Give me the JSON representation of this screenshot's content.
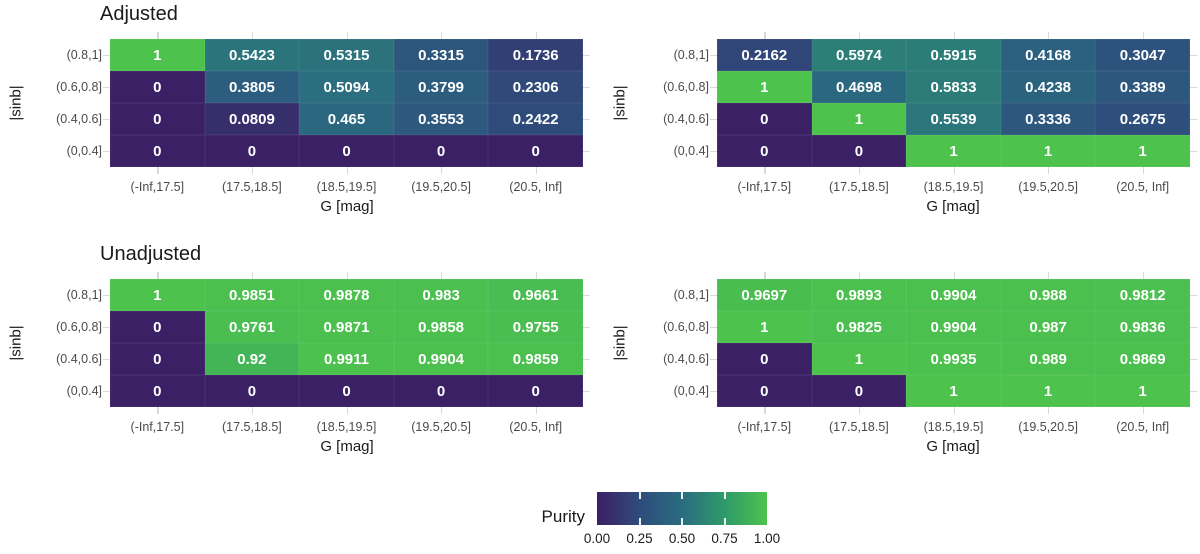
{
  "figure": {
    "background": "#ffffff",
    "x_axis_label": "G [mag]",
    "y_axis_label": "|sinb|",
    "x_categories": [
      "(-Inf,17.5]",
      "(17.5,18.5]",
      "(18.5,19.5]",
      "(19.5,20.5]",
      "(20.5, Inf]"
    ],
    "y_categories": [
      "(0.8,1]",
      "(0.6,0.8]",
      "(0.4,0.6]",
      "(0,0.4]"
    ]
  },
  "legend": {
    "title": "Purity",
    "tick_labels": [
      "0.00",
      "0.25",
      "0.50",
      "0.75",
      "1.00"
    ],
    "range": [
      0,
      1
    ]
  },
  "colorscale": {
    "name": "viridis-like",
    "cell_text_color": "#ffffff",
    "grid_stub_color": "#d9d9d9",
    "stops": [
      {
        "at": 0.0,
        "color": "#3b2065"
      },
      {
        "at": 0.25,
        "color": "#2e4c7b"
      },
      {
        "at": 0.5,
        "color": "#2a6c80"
      },
      {
        "at": 0.75,
        "color": "#2f9a69"
      },
      {
        "at": 1.0,
        "color": "#4dc24d"
      }
    ]
  },
  "chart_data": [
    {
      "type": "heatmap",
      "title": "Adjusted",
      "position": "top-left",
      "xlabel": "G [mag]",
      "ylabel": "|sinb|",
      "value_name": "Purity",
      "x_categories": [
        "(-Inf,17.5]",
        "(17.5,18.5]",
        "(18.5,19.5]",
        "(19.5,20.5]",
        "(20.5, Inf]"
      ],
      "y_categories": [
        "(0.8,1]",
        "(0.6,0.8]",
        "(0.4,0.6]",
        "(0,0.4]"
      ],
      "values_by_row": [
        [
          1,
          0.5423,
          0.5315,
          0.3315,
          0.1736
        ],
        [
          0,
          0.3805,
          0.5094,
          0.3799,
          0.2306
        ],
        [
          0,
          0.0809,
          0.465,
          0.3553,
          0.2422
        ],
        [
          0,
          0,
          0,
          0,
          0
        ]
      ]
    },
    {
      "type": "heatmap",
      "position": "top-right",
      "xlabel": "G [mag]",
      "ylabel": "|sinb|",
      "value_name": "Purity",
      "x_categories": [
        "(-Inf,17.5]",
        "(17.5,18.5]",
        "(18.5,19.5]",
        "(19.5,20.5]",
        "(20.5, Inf]"
      ],
      "y_categories": [
        "(0.8,1]",
        "(0.6,0.8]",
        "(0.4,0.6]",
        "(0,0.4]"
      ],
      "values_by_row": [
        [
          0.2162,
          0.5974,
          0.5915,
          0.4168,
          0.3047
        ],
        [
          1,
          0.4698,
          0.5833,
          0.4238,
          0.3389
        ],
        [
          0,
          1,
          0.5539,
          0.3336,
          0.2675
        ],
        [
          0,
          0,
          1,
          1,
          1
        ]
      ]
    },
    {
      "type": "heatmap",
      "title": "Unadjusted",
      "position": "bottom-left",
      "xlabel": "G [mag]",
      "ylabel": "|sinb|",
      "value_name": "Purity",
      "x_categories": [
        "(-Inf,17.5]",
        "(17.5,18.5]",
        "(18.5,19.5]",
        "(19.5,20.5]",
        "(20.5, Inf]"
      ],
      "y_categories": [
        "(0.8,1]",
        "(0.6,0.8]",
        "(0.4,0.6]",
        "(0,0.4]"
      ],
      "values_by_row": [
        [
          1,
          0.9851,
          0.9878,
          0.983,
          0.9661
        ],
        [
          0,
          0.9761,
          0.9871,
          0.9858,
          0.9755
        ],
        [
          0,
          0.92,
          0.9911,
          0.9904,
          0.9859
        ],
        [
          0,
          0,
          0,
          0,
          0
        ]
      ]
    },
    {
      "type": "heatmap",
      "position": "bottom-right",
      "xlabel": "G [mag]",
      "ylabel": "|sinb|",
      "value_name": "Purity",
      "x_categories": [
        "(-Inf,17.5]",
        "(17.5,18.5]",
        "(18.5,19.5]",
        "(19.5,20.5]",
        "(20.5, Inf]"
      ],
      "y_categories": [
        "(0.8,1]",
        "(0.6,0.8]",
        "(0.4,0.6]",
        "(0,0.4]"
      ],
      "values_by_row": [
        [
          0.9697,
          0.9893,
          0.9904,
          0.988,
          0.9812
        ],
        [
          1,
          0.9825,
          0.9904,
          0.987,
          0.9836
        ],
        [
          0,
          1,
          0.9935,
          0.989,
          0.9869
        ],
        [
          0,
          0,
          1,
          1,
          1
        ]
      ]
    }
  ]
}
